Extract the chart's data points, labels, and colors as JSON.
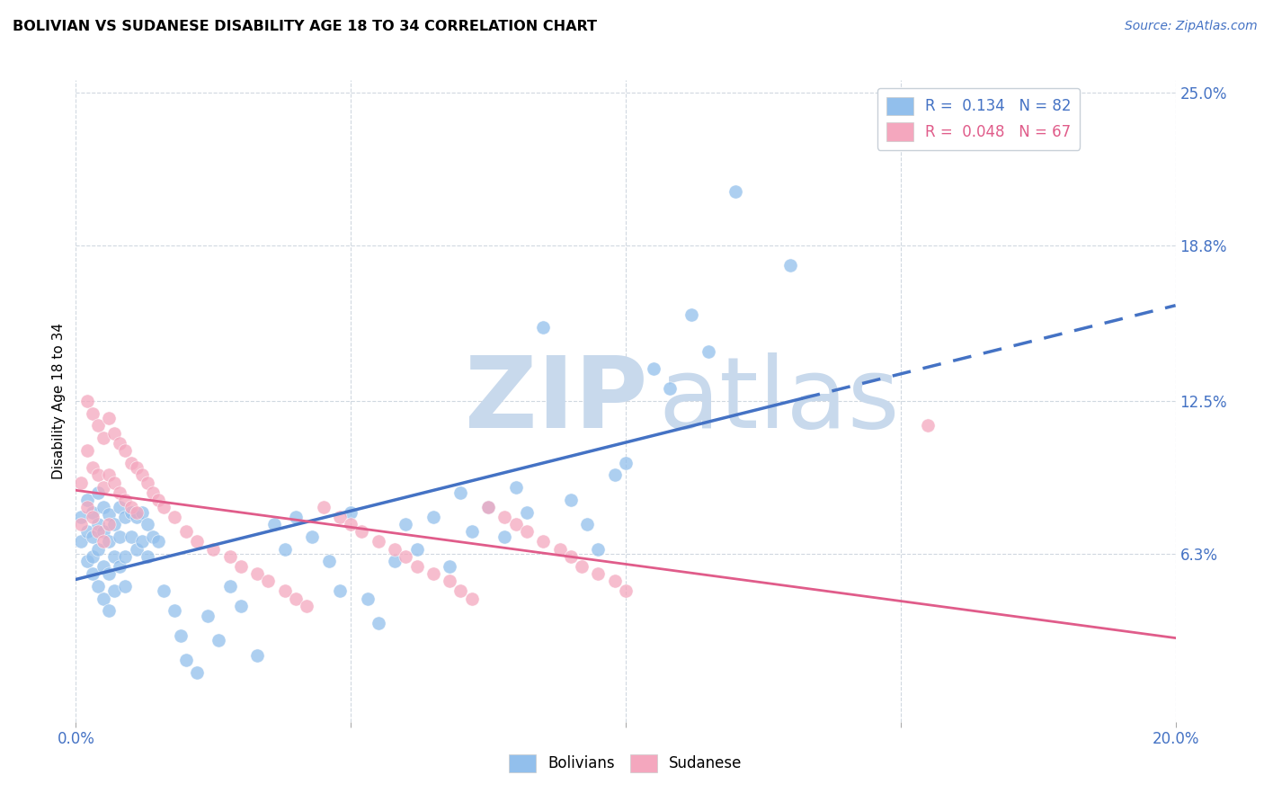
{
  "title": "BOLIVIAN VS SUDANESE DISABILITY AGE 18 TO 34 CORRELATION CHART",
  "source": "Source: ZipAtlas.com",
  "ylabel": "Disability Age 18 to 34",
  "xlim": [
    0.0,
    0.2
  ],
  "ylim": [
    -0.005,
    0.255
  ],
  "xtick_positions": [
    0.0,
    0.05,
    0.1,
    0.15,
    0.2
  ],
  "xticklabels_show": [
    "0.0%",
    "20.0%"
  ],
  "ytick_positions": [
    0.063,
    0.125,
    0.188,
    0.25
  ],
  "ytick_labels": [
    "6.3%",
    "12.5%",
    "18.8%",
    "25.0%"
  ],
  "legend_R_bolivian": "0.134",
  "legend_N_bolivian": "82",
  "legend_R_sudanese": "0.048",
  "legend_N_sudanese": "67",
  "bolivian_color": "#92BFEC",
  "sudanese_color": "#F4A7BE",
  "trend_bolivian_color": "#4472C4",
  "trend_sudanese_color": "#E05C8A",
  "watermark_zip": "ZIP",
  "watermark_atlas": "atlas",
  "watermark_color": "#C8D9EC",
  "grid_color": "#D0D8E0",
  "bolivian_scatter_x": [
    0.001,
    0.001,
    0.002,
    0.002,
    0.002,
    0.003,
    0.003,
    0.003,
    0.003,
    0.004,
    0.004,
    0.004,
    0.004,
    0.005,
    0.005,
    0.005,
    0.005,
    0.006,
    0.006,
    0.006,
    0.006,
    0.007,
    0.007,
    0.007,
    0.008,
    0.008,
    0.008,
    0.009,
    0.009,
    0.009,
    0.01,
    0.01,
    0.011,
    0.011,
    0.012,
    0.012,
    0.013,
    0.013,
    0.014,
    0.015,
    0.016,
    0.018,
    0.019,
    0.02,
    0.022,
    0.024,
    0.026,
    0.028,
    0.03,
    0.033,
    0.036,
    0.038,
    0.04,
    0.043,
    0.046,
    0.048,
    0.05,
    0.053,
    0.055,
    0.058,
    0.06,
    0.062,
    0.065,
    0.068,
    0.07,
    0.072,
    0.075,
    0.078,
    0.08,
    0.082,
    0.085,
    0.09,
    0.093,
    0.095,
    0.098,
    0.1,
    0.105,
    0.108,
    0.112,
    0.115,
    0.12,
    0.13
  ],
  "bolivian_scatter_y": [
    0.078,
    0.068,
    0.085,
    0.072,
    0.06,
    0.08,
    0.07,
    0.062,
    0.055,
    0.088,
    0.075,
    0.065,
    0.05,
    0.082,
    0.072,
    0.058,
    0.045,
    0.079,
    0.068,
    0.055,
    0.04,
    0.075,
    0.062,
    0.048,
    0.082,
    0.07,
    0.058,
    0.078,
    0.062,
    0.05,
    0.08,
    0.07,
    0.078,
    0.065,
    0.08,
    0.068,
    0.075,
    0.062,
    0.07,
    0.068,
    0.048,
    0.04,
    0.03,
    0.02,
    0.015,
    0.038,
    0.028,
    0.05,
    0.042,
    0.022,
    0.075,
    0.065,
    0.078,
    0.07,
    0.06,
    0.048,
    0.08,
    0.045,
    0.035,
    0.06,
    0.075,
    0.065,
    0.078,
    0.058,
    0.088,
    0.072,
    0.082,
    0.07,
    0.09,
    0.08,
    0.155,
    0.085,
    0.075,
    0.065,
    0.095,
    0.1,
    0.138,
    0.13,
    0.16,
    0.145,
    0.21,
    0.18
  ],
  "sudanese_scatter_x": [
    0.001,
    0.001,
    0.002,
    0.002,
    0.002,
    0.003,
    0.003,
    0.003,
    0.004,
    0.004,
    0.004,
    0.005,
    0.005,
    0.005,
    0.006,
    0.006,
    0.006,
    0.007,
    0.007,
    0.008,
    0.008,
    0.009,
    0.009,
    0.01,
    0.01,
    0.011,
    0.011,
    0.012,
    0.013,
    0.014,
    0.015,
    0.016,
    0.018,
    0.02,
    0.022,
    0.025,
    0.028,
    0.03,
    0.033,
    0.035,
    0.038,
    0.04,
    0.042,
    0.045,
    0.048,
    0.05,
    0.052,
    0.055,
    0.058,
    0.06,
    0.062,
    0.065,
    0.068,
    0.07,
    0.072,
    0.075,
    0.078,
    0.08,
    0.082,
    0.085,
    0.088,
    0.09,
    0.092,
    0.095,
    0.098,
    0.1,
    0.155
  ],
  "sudanese_scatter_y": [
    0.092,
    0.075,
    0.125,
    0.105,
    0.082,
    0.12,
    0.098,
    0.078,
    0.115,
    0.095,
    0.072,
    0.11,
    0.09,
    0.068,
    0.118,
    0.095,
    0.075,
    0.112,
    0.092,
    0.108,
    0.088,
    0.105,
    0.085,
    0.1,
    0.082,
    0.098,
    0.08,
    0.095,
    0.092,
    0.088,
    0.085,
    0.082,
    0.078,
    0.072,
    0.068,
    0.065,
    0.062,
    0.058,
    0.055,
    0.052,
    0.048,
    0.045,
    0.042,
    0.082,
    0.078,
    0.075,
    0.072,
    0.068,
    0.065,
    0.062,
    0.058,
    0.055,
    0.052,
    0.048,
    0.045,
    0.082,
    0.078,
    0.075,
    0.072,
    0.068,
    0.065,
    0.062,
    0.058,
    0.055,
    0.052,
    0.048,
    0.115
  ],
  "trend_bolivian_x_start": 0.0,
  "trend_bolivian_x_solid_end": 0.132,
  "trend_bolivian_x_end": 0.2,
  "trend_sudanese_x_start": 0.0,
  "trend_sudanese_x_end": 0.2
}
